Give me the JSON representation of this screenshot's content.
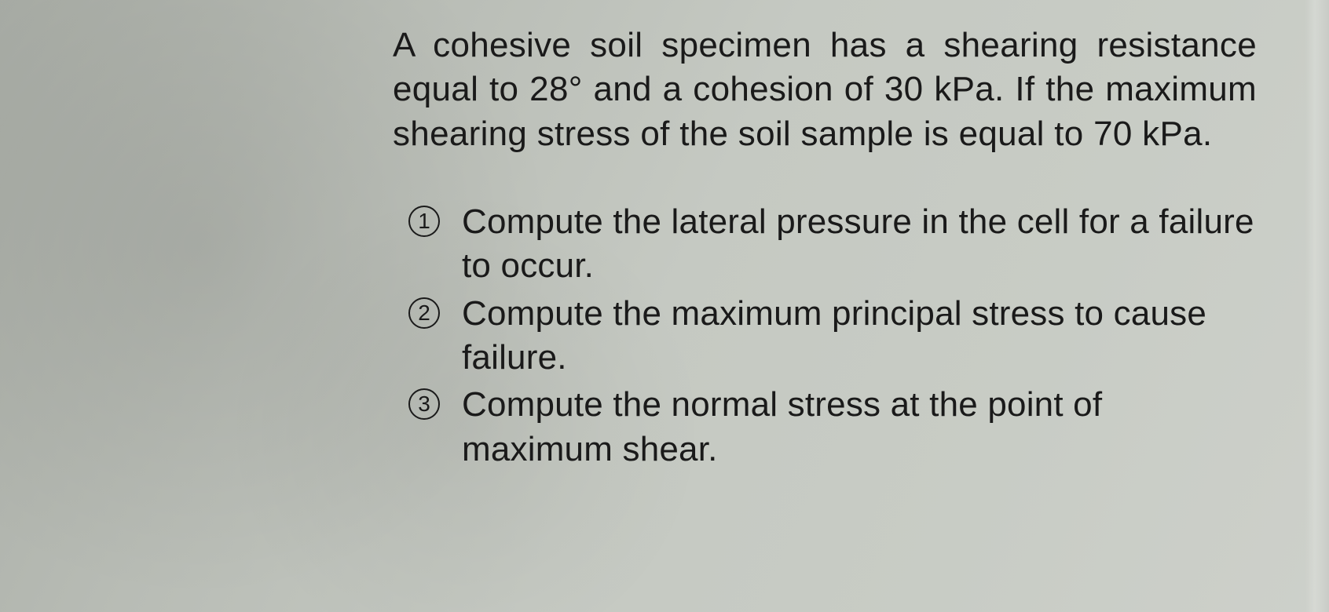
{
  "document": {
    "background_gradient_start": "#a8aca5",
    "background_gradient_end": "#cdd0ca",
    "text_color": "#1a1a1a",
    "font_family": "Arial",
    "problem_fontsize": 44,
    "question_fontsize": 44,
    "line_height": 1.28
  },
  "problem": {
    "text": "A cohesive soil specimen has a shearing resistance equal to 28° and a cohesion of 30 kPa. If the maximum shearing stress of the soil sample is equal to 70 kPa."
  },
  "questions": [
    {
      "number": "1",
      "text": "Compute the lateral pressure in the cell for a failure to occur."
    },
    {
      "number": "2",
      "text": "Compute the maximum principal stress to cause failure."
    },
    {
      "number": "3",
      "text": "Compute the normal stress at the point of maximum shear."
    }
  ]
}
